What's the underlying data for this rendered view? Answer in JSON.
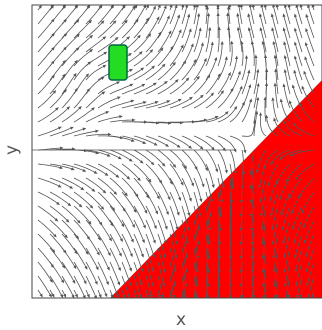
{
  "chart_data": {
    "type": "streamplot",
    "xlabel": "x",
    "ylabel": "y"
  }
}
